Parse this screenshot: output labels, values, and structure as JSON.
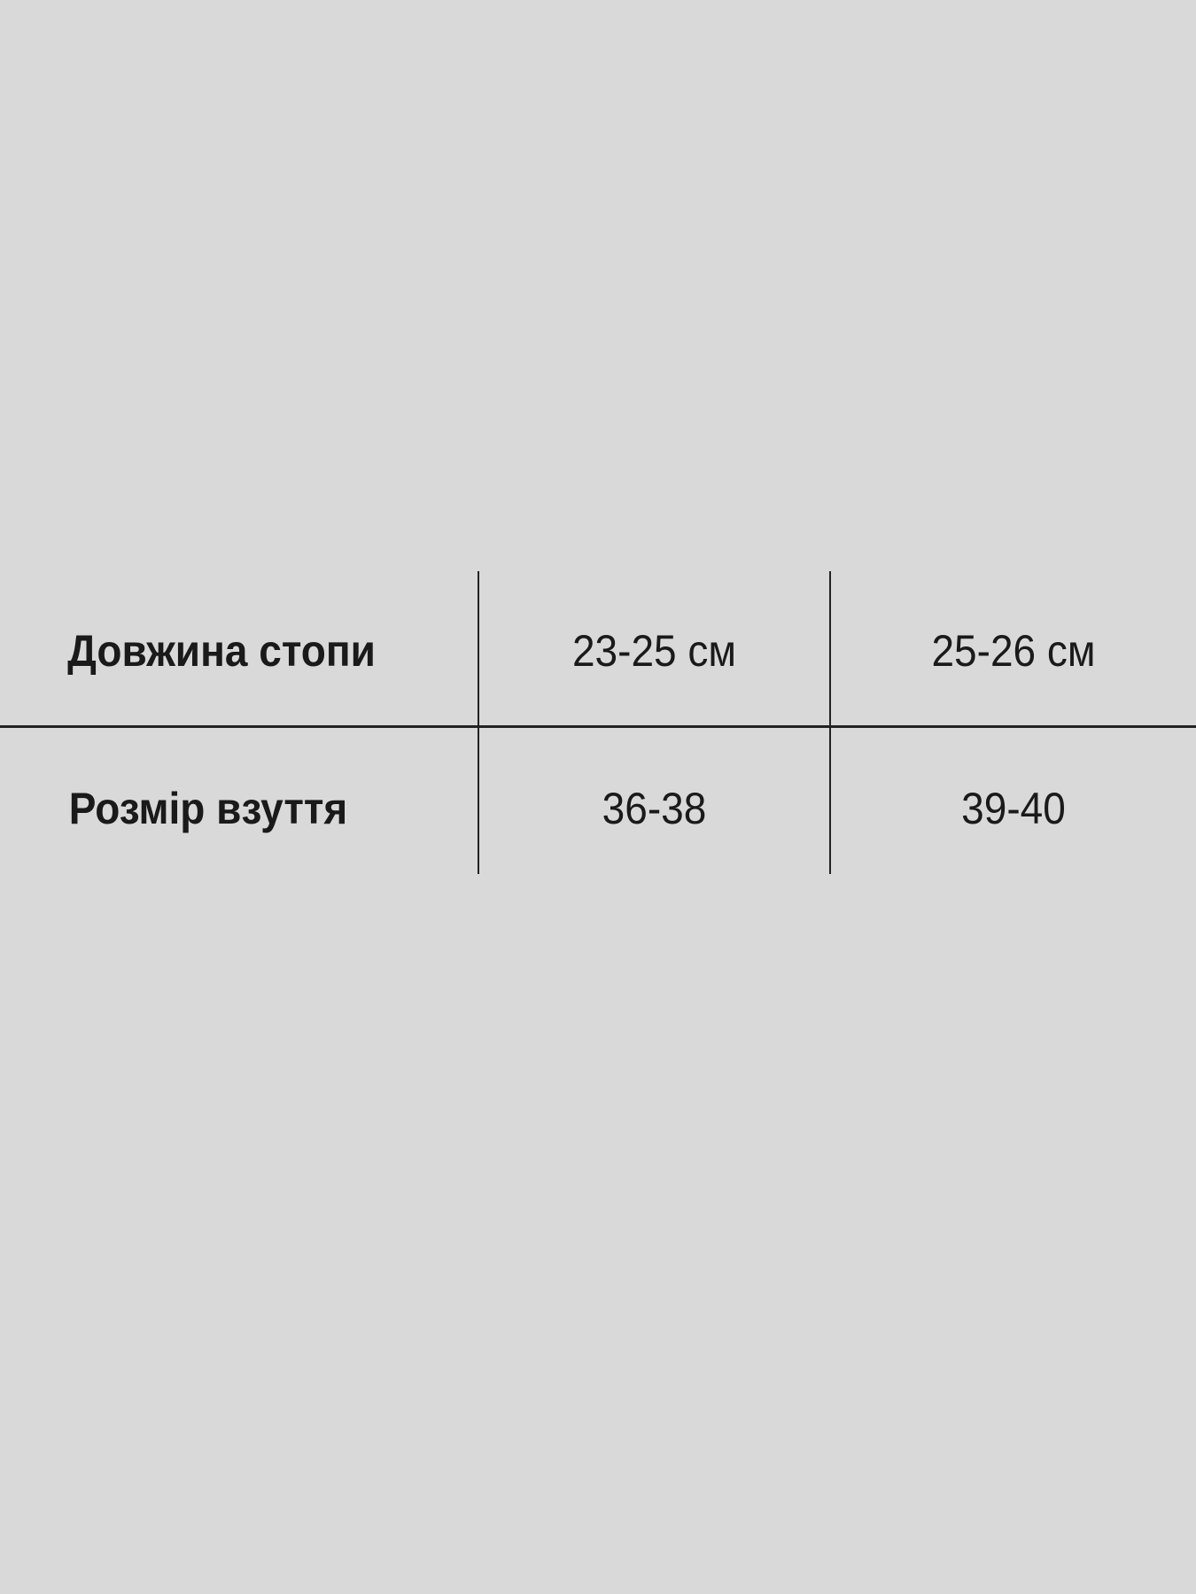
{
  "table": {
    "rows": [
      {
        "label": "Довжина стопи",
        "values": [
          "23-25 см",
          "25-26 см"
        ]
      },
      {
        "label": "Розмір взуття",
        "values": [
          "36-38",
          "39-40"
        ]
      }
    ]
  },
  "colors": {
    "background": "#d9d9d9",
    "text": "#1a1a1a",
    "lines": "#222222"
  }
}
